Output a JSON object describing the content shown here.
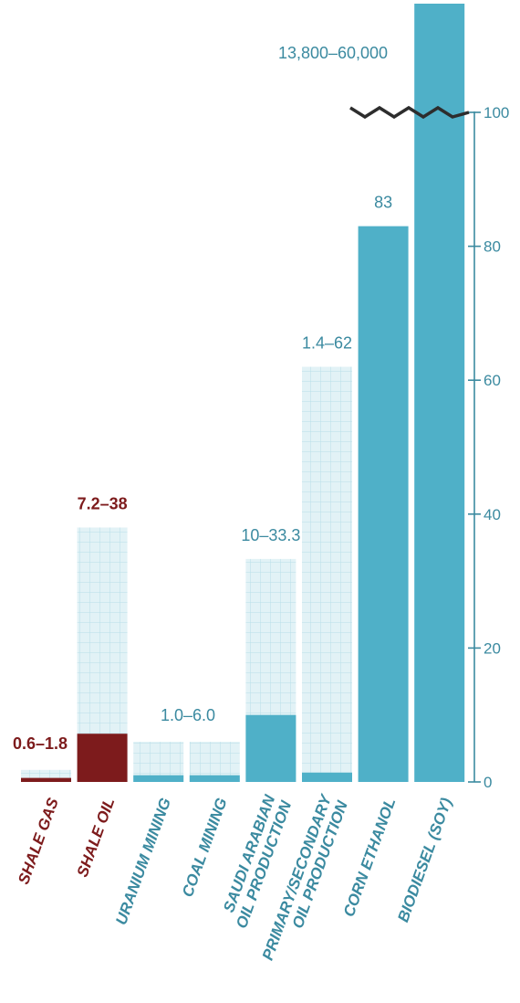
{
  "chart_data": {
    "type": "bar",
    "title": "",
    "xlabel": "",
    "ylabel": "",
    "ylim": [
      0,
      100
    ],
    "yticks": [
      0,
      20,
      40,
      60,
      80,
      100
    ],
    "axis_position": "right",
    "axis_break_at": 100,
    "grid": false,
    "colors": {
      "bar": "#4fb0c8",
      "range": "#e2f2f6",
      "range_grid": "#b8dfe8",
      "highlight": "#7d1b1c",
      "label": "#3b8aa0",
      "break_line": "#2d2d2d"
    },
    "bars": [
      {
        "category": "SHALE GAS",
        "lines": [
          "SHALE GAS"
        ],
        "low": 0.6,
        "high": 1.8,
        "label": "0.6–1.8",
        "highlight": true
      },
      {
        "category": "SHALE OIL",
        "lines": [
          "SHALE OIL"
        ],
        "low": 7.2,
        "high": 38,
        "label": "7.2–38",
        "highlight": true
      },
      {
        "category": "URANIUM MINING",
        "lines": [
          "URANIUM MINING"
        ],
        "low": 1.0,
        "high": 6.0,
        "label": "",
        "highlight": false
      },
      {
        "category": "COAL MINING",
        "lines": [
          "COAL MINING"
        ],
        "low": 1.0,
        "high": 6.0,
        "label": "1.0–6.0",
        "highlight": false
      },
      {
        "category": "SAUDI ARABIAN OIL PRODUCTION",
        "lines": [
          "SAUDI ARABIAN",
          "OIL PRODUCTION"
        ],
        "low": 10,
        "high": 33.3,
        "label": "10–33.3",
        "highlight": false
      },
      {
        "category": "PRIMARY/SECONDARY OIL PRODUCTION",
        "lines": [
          "PRIMARY/SECONDARY",
          "OIL PRODUCTION"
        ],
        "low": 1.4,
        "high": 62,
        "label": "1.4–62",
        "highlight": false
      },
      {
        "category": "CORN ETHANOL",
        "lines": [
          "CORN ETHANOL"
        ],
        "low": 83,
        "high": null,
        "label": "83",
        "highlight": false
      },
      {
        "category": "BIODIESEL (SOY)",
        "lines": [
          "BIODIESEL (SOY)"
        ],
        "low": 13800,
        "high": 60000,
        "label": "13,800–60,000",
        "highlight": false,
        "exceeds_axis": true
      }
    ]
  }
}
